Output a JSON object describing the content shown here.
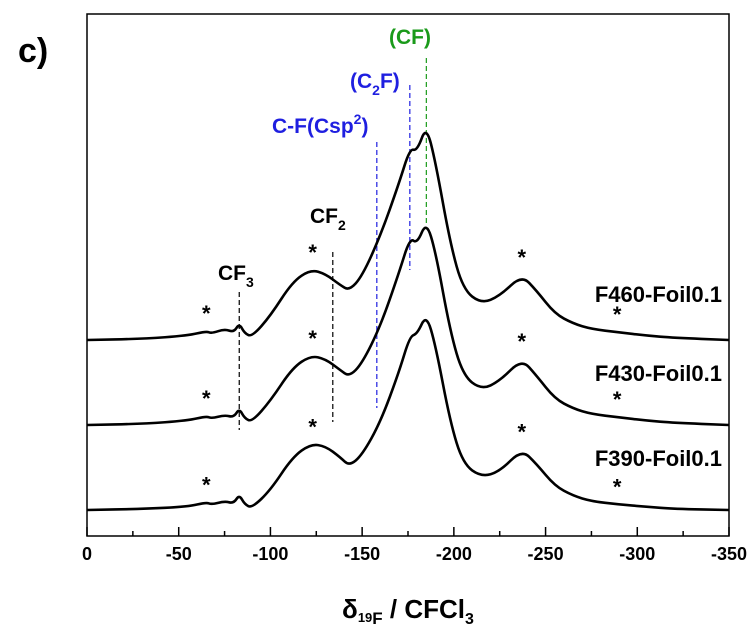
{
  "chart_data": {
    "type": "line",
    "panel_label": "c)",
    "xlabel": "δ19F / CFCl3",
    "xlim": [
      0,
      -350
    ],
    "x_reversed": true,
    "x_ticks": [
      0,
      -50,
      -100,
      -150,
      -200,
      -250,
      -300,
      -350
    ],
    "x_tick_labels": [
      "0",
      "-50",
      "-100",
      "-150",
      "-200",
      "-250",
      "-300",
      "-350"
    ],
    "y_axis_visible": false,
    "series": [
      {
        "name": "F390-Foil0.1",
        "values": [
          [
            0,
            0.0
          ],
          [
            -30,
            0.01
          ],
          [
            -55,
            0.03
          ],
          [
            -65,
            0.07
          ],
          [
            -68,
            0.05
          ],
          [
            -75,
            0.08
          ],
          [
            -80,
            0.06
          ],
          [
            -83,
            0.14
          ],
          [
            -86,
            0.05
          ],
          [
            -90,
            0.02
          ],
          [
            -100,
            0.18
          ],
          [
            -112,
            0.48
          ],
          [
            -122,
            0.6
          ],
          [
            -130,
            0.58
          ],
          [
            -138,
            0.48
          ],
          [
            -143,
            0.4
          ],
          [
            -150,
            0.5
          ],
          [
            -160,
            0.8
          ],
          [
            -170,
            1.25
          ],
          [
            -176,
            1.58
          ],
          [
            -180,
            1.6
          ],
          [
            -185,
            1.78
          ],
          [
            -190,
            1.5
          ],
          [
            -198,
            0.8
          ],
          [
            -205,
            0.42
          ],
          [
            -215,
            0.3
          ],
          [
            -225,
            0.35
          ],
          [
            -237,
            0.55
          ],
          [
            -245,
            0.42
          ],
          [
            -255,
            0.22
          ],
          [
            -265,
            0.13
          ],
          [
            -275,
            0.08
          ],
          [
            -290,
            0.05
          ],
          [
            -305,
            0.03
          ],
          [
            -320,
            0.01
          ],
          [
            -350,
            0.0
          ]
        ]
      },
      {
        "name": "F430-Foil0.1",
        "values": [
          [
            0,
            0.0
          ],
          [
            -30,
            0.01
          ],
          [
            -55,
            0.04
          ],
          [
            -65,
            0.08
          ],
          [
            -68,
            0.06
          ],
          [
            -75,
            0.09
          ],
          [
            -80,
            0.07
          ],
          [
            -83,
            0.15
          ],
          [
            -86,
            0.06
          ],
          [
            -90,
            0.03
          ],
          [
            -100,
            0.22
          ],
          [
            -112,
            0.52
          ],
          [
            -122,
            0.63
          ],
          [
            -130,
            0.6
          ],
          [
            -138,
            0.5
          ],
          [
            -143,
            0.44
          ],
          [
            -150,
            0.56
          ],
          [
            -160,
            0.9
          ],
          [
            -170,
            1.38
          ],
          [
            -176,
            1.7
          ],
          [
            -180,
            1.65
          ],
          [
            -185,
            1.85
          ],
          [
            -190,
            1.58
          ],
          [
            -198,
            0.85
          ],
          [
            -205,
            0.45
          ],
          [
            -215,
            0.32
          ],
          [
            -225,
            0.4
          ],
          [
            -237,
            0.6
          ],
          [
            -245,
            0.45
          ],
          [
            -255,
            0.24
          ],
          [
            -265,
            0.15
          ],
          [
            -275,
            0.1
          ],
          [
            -290,
            0.07
          ],
          [
            -305,
            0.04
          ],
          [
            -320,
            0.02
          ],
          [
            -350,
            0.0
          ]
        ]
      },
      {
        "name": "F460-Foil0.1",
        "values": [
          [
            0,
            0.0
          ],
          [
            -30,
            0.01
          ],
          [
            -55,
            0.04
          ],
          [
            -65,
            0.08
          ],
          [
            -68,
            0.06
          ],
          [
            -75,
            0.1
          ],
          [
            -80,
            0.07
          ],
          [
            -83,
            0.15
          ],
          [
            -86,
            0.06
          ],
          [
            -90,
            0.03
          ],
          [
            -100,
            0.22
          ],
          [
            -112,
            0.53
          ],
          [
            -122,
            0.64
          ],
          [
            -130,
            0.6
          ],
          [
            -138,
            0.5
          ],
          [
            -143,
            0.45
          ],
          [
            -150,
            0.58
          ],
          [
            -160,
            0.95
          ],
          [
            -170,
            1.42
          ],
          [
            -176,
            1.74
          ],
          [
            -180,
            1.72
          ],
          [
            -185,
            1.95
          ],
          [
            -190,
            1.62
          ],
          [
            -198,
            0.88
          ],
          [
            -205,
            0.46
          ],
          [
            -215,
            0.33
          ],
          [
            -225,
            0.4
          ],
          [
            -237,
            0.59
          ],
          [
            -245,
            0.45
          ],
          [
            -255,
            0.24
          ],
          [
            -265,
            0.15
          ],
          [
            -275,
            0.1
          ],
          [
            -290,
            0.07
          ],
          [
            -305,
            0.04
          ],
          [
            -320,
            0.02
          ],
          [
            -350,
            0.0
          ]
        ]
      }
    ],
    "annotations": [
      {
        "text": "CF3",
        "x": -83,
        "color": "#000000"
      },
      {
        "text": "CF2",
        "x": -134,
        "color": "#000000"
      },
      {
        "text": "C-F(Csp2)",
        "x": -158,
        "color": "#1f1fe0"
      },
      {
        "text": "(C2F)",
        "x": -176,
        "color": "#1f1fe0"
      },
      {
        "text": "(CF)",
        "x": -185,
        "color": "#1a9a1a"
      }
    ],
    "star_marker": "*",
    "star_positions_x": [
      -65,
      -123,
      -237,
      -289
    ]
  }
}
